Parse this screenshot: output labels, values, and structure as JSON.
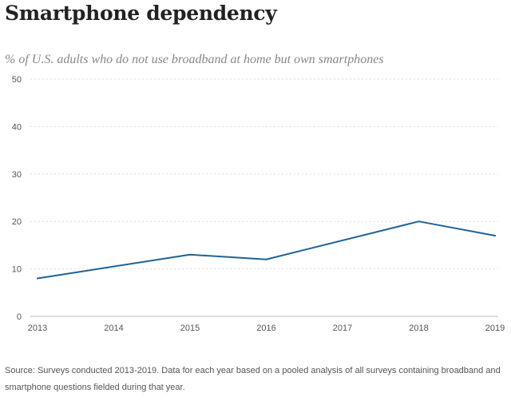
{
  "chart_data": {
    "type": "line",
    "title": "Smartphone dependency",
    "subtitle": "% of U.S. adults who do not use broadband at home but own smartphones",
    "xlabel": "",
    "ylabel": "",
    "x": [
      "2013",
      "2014",
      "2015",
      "2016",
      "2017",
      "2018",
      "2019"
    ],
    "series": [
      {
        "values": [
          8,
          null,
          13,
          12,
          null,
          20,
          17
        ]
      }
    ],
    "x_values": [
      2013,
      2015,
      2016,
      2018,
      2019
    ],
    "y_values": [
      8,
      13,
      12,
      20,
      17
    ],
    "ylim": [
      0,
      50
    ],
    "yticks": [
      "0",
      "10",
      "20",
      "30",
      "40",
      "50"
    ],
    "grid": "horizontal dotted",
    "line_color": "#1f6396"
  },
  "source": "Source: Surveys conducted 2013-2019. Data for each year based on a pooled analysis of all surveys containing broadband and smartphone questions fielded during that year."
}
